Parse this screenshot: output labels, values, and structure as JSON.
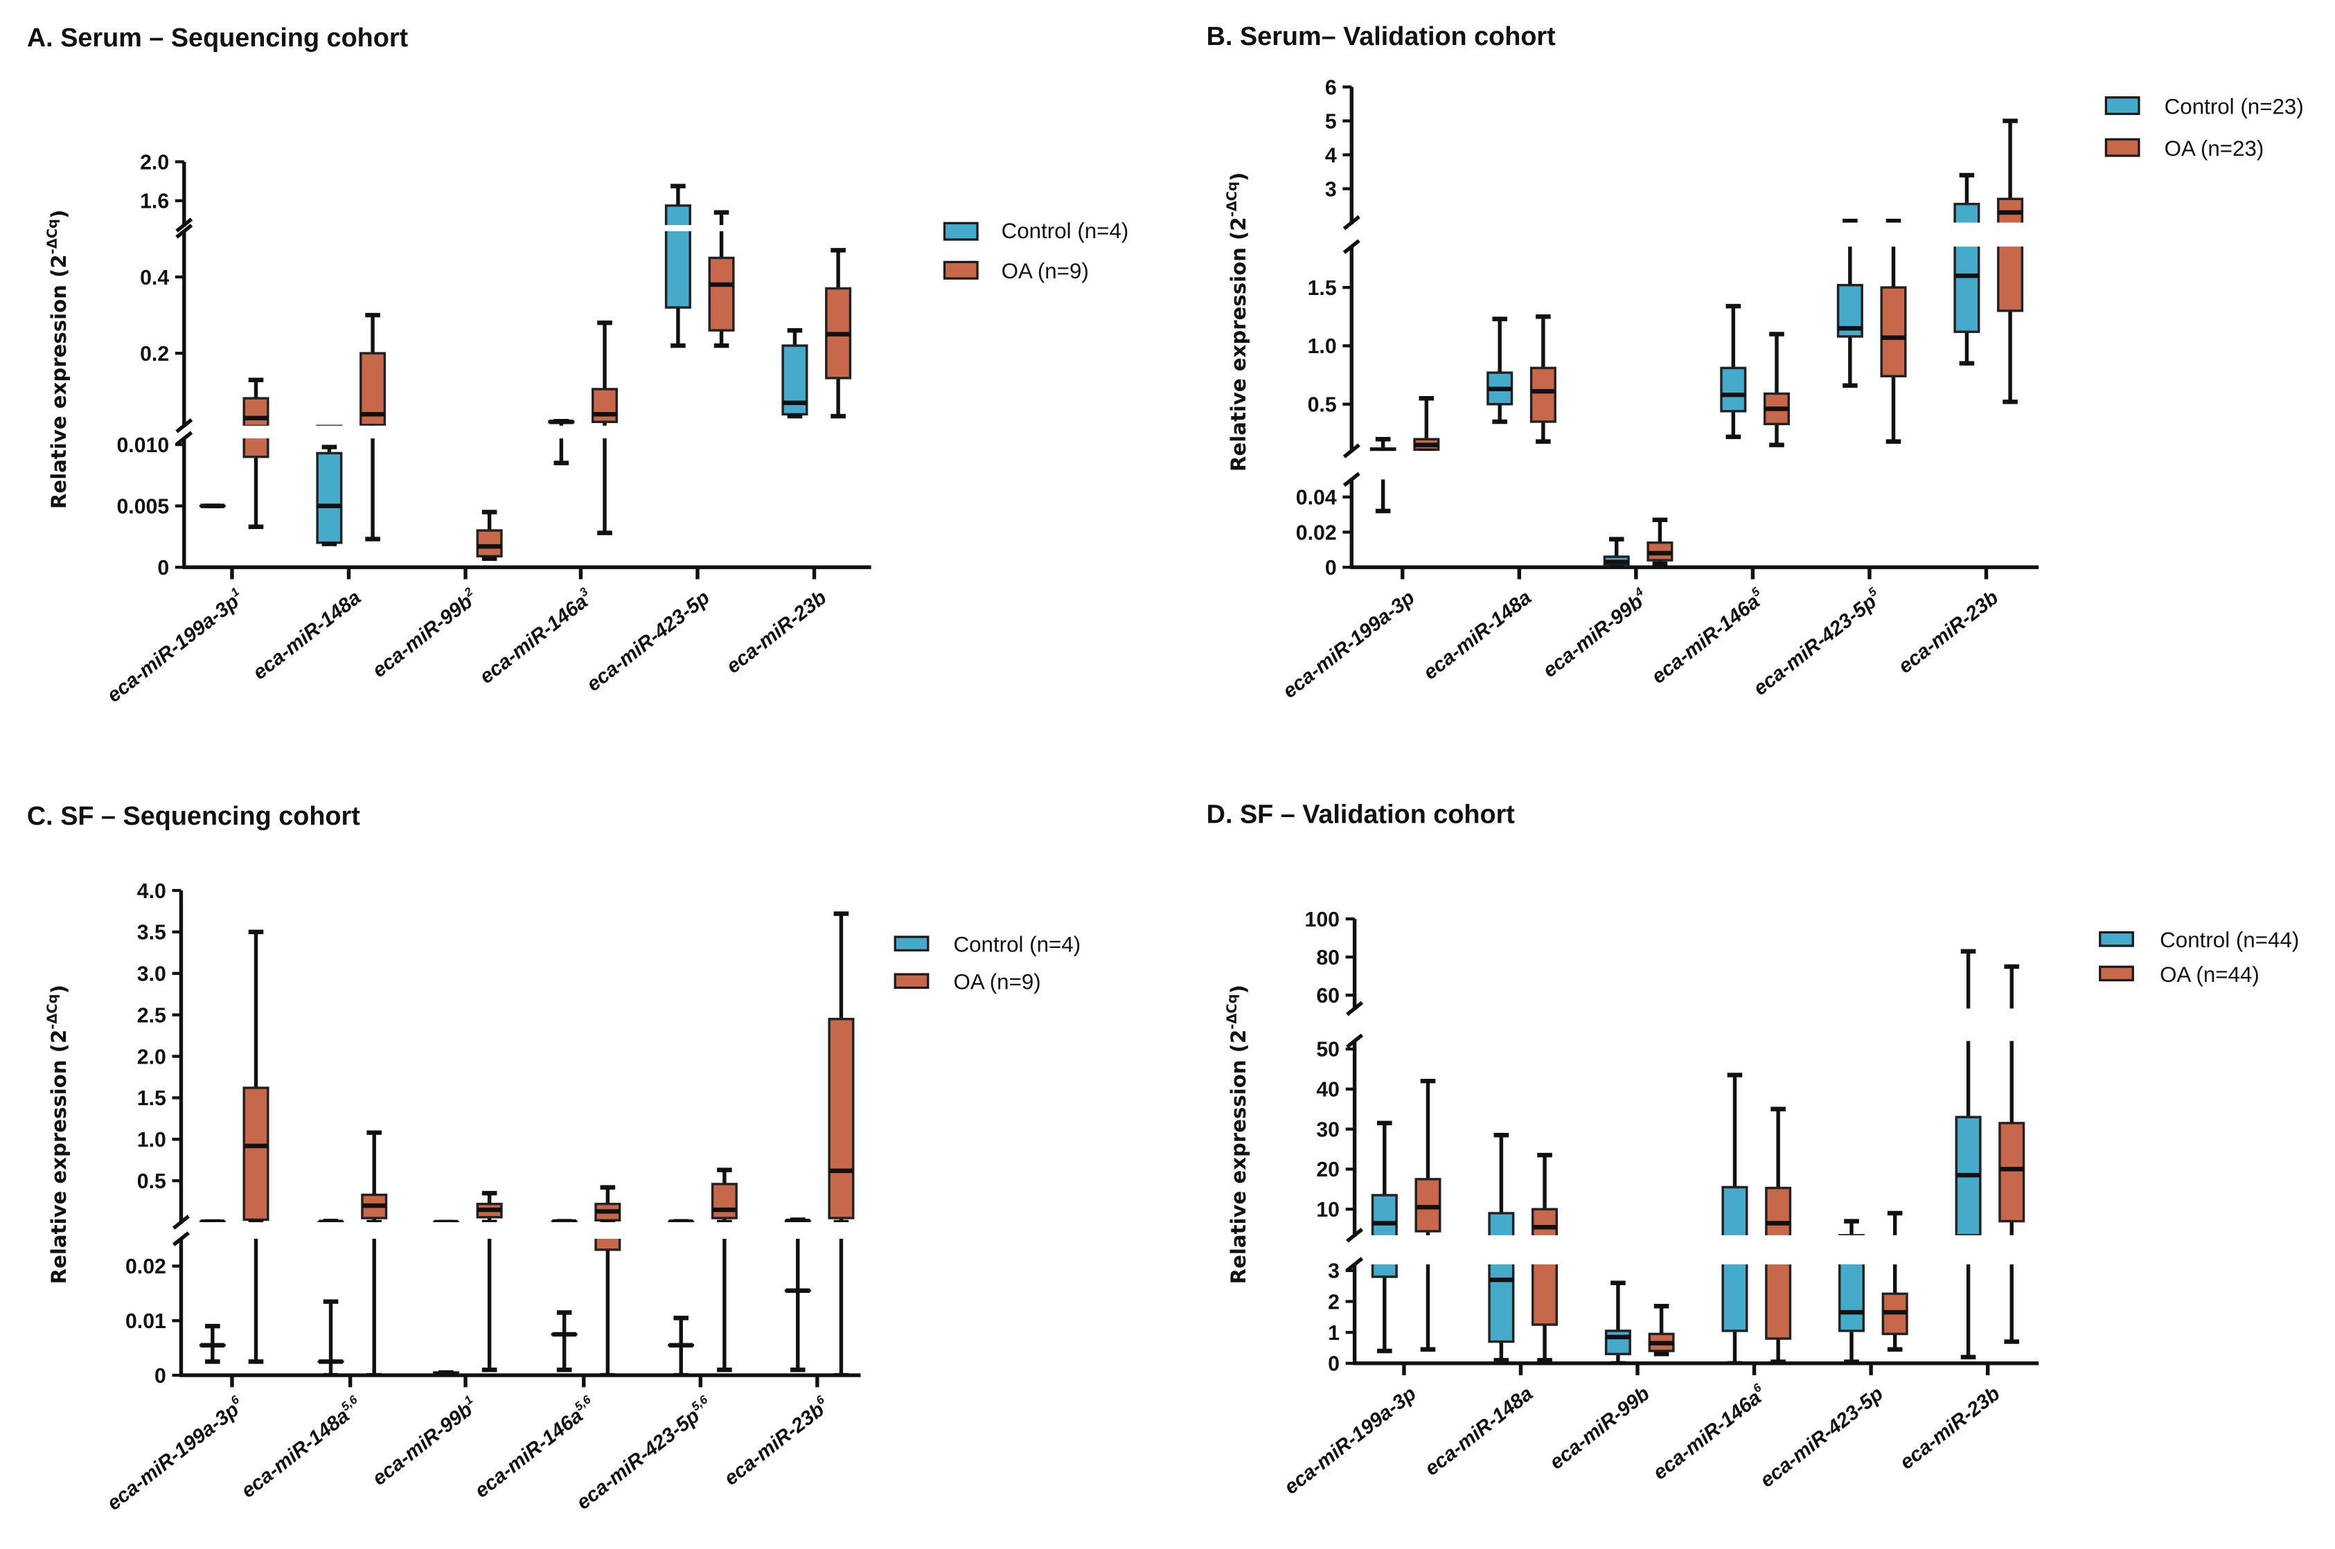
{
  "colors": {
    "control": "#46aacb",
    "oa": "#c8684a",
    "stroke": "#1a1a1a"
  },
  "chart_data": [
    {
      "type": "box",
      "title": "A. Serum – Sequencing cohort",
      "ylabel": {
        "base": "Relative expression (2",
        "sup": "-ΔCq",
        "close": ")"
      },
      "legend": {
        "placement": "right",
        "entries": [
          "Control (n=4)",
          "OA (n=9)"
        ]
      },
      "y_segments": [
        [
          0,
          0.0105
        ],
        [
          0.01,
          0.52
        ],
        [
          1.35,
          2.0
        ]
      ],
      "yticks": [
        {
          "v": 0,
          "label": "0"
        },
        {
          "v": 0.005,
          "label": "0.005"
        },
        {
          "v": 0.01,
          "label": "0.010"
        },
        {
          "v": 0.2,
          "label": "0.2"
        },
        {
          "v": 0.4,
          "label": "0.4"
        },
        {
          "v": 1.6,
          "label": "1.6"
        },
        {
          "v": 2.0,
          "label": "2.0"
        }
      ],
      "categories": [
        {
          "base": "eca-miR-199a-3p",
          "sup": "1"
        },
        {
          "base": "eca-miR-148a",
          "sup": ""
        },
        {
          "base": "eca-miR-99b",
          "sup": "2"
        },
        {
          "base": "eca-miR-146a",
          "sup": "3"
        },
        {
          "base": "eca-miR-423-5p",
          "sup": ""
        },
        {
          "base": "eca-miR-23b",
          "sup": ""
        }
      ],
      "series": [
        {
          "name": "Control (n=4)",
          "boxes": [
            {
              "min": 0.005,
              "q1": 0.005,
              "med": 0.005,
              "q3": 0.005,
              "max": 0.005
            },
            {
              "min": 0.0019,
              "q1": 0.002,
              "med": 0.005,
              "q3": 0.0093,
              "max": 0.0098
            },
            null,
            {
              "min": 0.0085,
              "q1": 0.019,
              "med": 0.02,
              "q3": 0.021,
              "max": 0.022
            },
            {
              "min": 0.22,
              "q1": 0.32,
              "med": null,
              "q3": 1.55,
              "max": 1.75
            },
            {
              "min": 0.035,
              "q1": 0.04,
              "med": 0.07,
              "q3": 0.22,
              "max": 0.26
            }
          ]
        },
        {
          "name": "OA (n=9)",
          "boxes": [
            {
              "min": 0.0033,
              "q1": 0.009,
              "med": 0.03,
              "q3": 0.082,
              "max": 0.13
            },
            {
              "min": 0.0023,
              "q1": 0.012,
              "med": 0.04,
              "q3": 0.2,
              "max": 0.3
            },
            {
              "min": 0.0007,
              "q1": 0.0009,
              "med": 0.0017,
              "q3": 0.003,
              "max": 0.0045
            },
            {
              "min": 0.0028,
              "q1": 0.02,
              "med": 0.04,
              "q3": 0.106,
              "max": 0.28
            },
            {
              "min": 0.22,
              "q1": 0.26,
              "med": 0.38,
              "q3": 0.45,
              "max": 1.48
            },
            {
              "min": 0.035,
              "q1": 0.135,
              "med": 0.25,
              "q3": 0.37,
              "max": 0.47
            }
          ]
        }
      ]
    },
    {
      "type": "box",
      "title": "B. Serum– Validation cohort",
      "ylabel": {
        "base": "Relative expression (2",
        "sup": "-ΔCq",
        "close": ")"
      },
      "legend": {
        "placement": "right",
        "entries": [
          "Control (n=23)",
          "OA (n=23)"
        ]
      },
      "y_segments": [
        [
          0,
          0.05
        ],
        [
          0.1,
          1.85
        ],
        [
          2.0,
          6.0
        ]
      ],
      "yticks": [
        {
          "v": 0,
          "label": "0"
        },
        {
          "v": 0.02,
          "label": "0.02"
        },
        {
          "v": 0.04,
          "label": "0.04"
        },
        {
          "v": 0.5,
          "label": "0.5"
        },
        {
          "v": 1.0,
          "label": "1.0"
        },
        {
          "v": 1.5,
          "label": "1.5"
        },
        {
          "v": 3,
          "label": "3"
        },
        {
          "v": 4,
          "label": "4"
        },
        {
          "v": 5,
          "label": "5"
        },
        {
          "v": 6,
          "label": "6"
        }
      ],
      "categories": [
        {
          "base": "eca-miR-199a-3p",
          "sup": ""
        },
        {
          "base": "eca-miR-148a",
          "sup": ""
        },
        {
          "base": "eca-miR-99b",
          "sup": "4"
        },
        {
          "base": "eca-miR-146a",
          "sup": "5"
        },
        {
          "base": "eca-miR-423-5p",
          "sup": "5"
        },
        {
          "base": "eca-miR-23b",
          "sup": ""
        }
      ],
      "series": [
        {
          "name": "Control (n=23)",
          "boxes": [
            {
              "min": 0.032,
              "q1": 0.1,
              "med": 0.1,
              "q3": 0.12,
              "max": 0.2
            },
            {
              "min": 0.35,
              "q1": 0.5,
              "med": 0.63,
              "q3": 0.77,
              "max": 1.23
            },
            {
              "min": 0,
              "q1": 0.001,
              "med": 0.003,
              "q3": 0.006,
              "max": 0.016
            },
            {
              "min": 0.22,
              "q1": 0.44,
              "med": 0.58,
              "q3": 0.81,
              "max": 1.34
            },
            {
              "min": 0.66,
              "q1": 1.08,
              "med": 1.15,
              "q3": 1.52,
              "max": 2.05
            },
            {
              "min": 0.85,
              "q1": 1.12,
              "med": 1.6,
              "q3": 2.55,
              "max": 3.4
            }
          ]
        },
        {
          "name": "OA (n=23)",
          "boxes": [
            {
              "min": 0.1,
              "q1": 0.11,
              "med": 0.15,
              "q3": 0.2,
              "max": 0.55
            },
            {
              "min": 0.18,
              "q1": 0.35,
              "med": 0.61,
              "q3": 0.81,
              "max": 1.25
            },
            {
              "min": 0.002,
              "q1": 0.004,
              "med": 0.008,
              "q3": 0.014,
              "max": 0.027
            },
            {
              "min": 0.15,
              "q1": 0.33,
              "med": 0.46,
              "q3": 0.59,
              "max": 1.1
            },
            {
              "min": 0.18,
              "q1": 0.74,
              "med": 1.07,
              "q3": 1.5,
              "max": 2.05
            },
            {
              "min": 0.52,
              "q1": 1.3,
              "med": 2.3,
              "q3": 2.7,
              "max": 5.0
            }
          ]
        }
      ]
    },
    {
      "type": "box",
      "title": "C. SF – Sequencing cohort",
      "ylabel": {
        "base": "Relative expression (2",
        "sup": "-ΔCq",
        "close": ")"
      },
      "legend": {
        "placement": "right",
        "entries": [
          "Control (n=4)",
          "OA (n=9)"
        ]
      },
      "y_segments": [
        [
          0,
          0.025
        ],
        [
          0,
          4.0
        ]
      ],
      "yticks": [
        {
          "v": 0,
          "label": "0",
          "seg": 0
        },
        {
          "v": 0.01,
          "label": "0.01",
          "seg": 0
        },
        {
          "v": 0.02,
          "label": "0.02",
          "seg": 0
        },
        {
          "v": 0.5,
          "label": "0.5",
          "seg": 1
        },
        {
          "v": 1.0,
          "label": "1.0",
          "seg": 1
        },
        {
          "v": 1.5,
          "label": "1.5",
          "seg": 1
        },
        {
          "v": 2.0,
          "label": "2.0",
          "seg": 1
        },
        {
          "v": 2.5,
          "label": "2.5",
          "seg": 1
        },
        {
          "v": 3.0,
          "label": "3.0",
          "seg": 1
        },
        {
          "v": 3.5,
          "label": "3.5",
          "seg": 1
        },
        {
          "v": 4.0,
          "label": "4.0",
          "seg": 1
        }
      ],
      "categories": [
        {
          "base": "eca-miR-199a-3p",
          "sup": "6"
        },
        {
          "base": "eca-miR-148a",
          "sup": "5,6"
        },
        {
          "base": "eca-miR-99b",
          "sup": "1"
        },
        {
          "base": "eca-miR-146a",
          "sup": "5,6"
        },
        {
          "base": "eca-miR-423-5p",
          "sup": "5,6"
        },
        {
          "base": "eca-miR-23b",
          "sup": "6"
        }
      ],
      "series": [
        {
          "name": "Control (n=4)",
          "boxes": [
            {
              "min": 0.0025,
              "q1": 0.0055,
              "med": 0.0055,
              "q3": 0.0055,
              "max": 0.009
            },
            {
              "min": 0,
              "q1": 0.0025,
              "med": 0.0025,
              "q3": 0.0025,
              "max": 0.0135
            },
            {
              "min": 0,
              "q1": 0,
              "med": 0.0003,
              "q3": 0.0005,
              "max": 0.0005
            },
            {
              "min": 0.001,
              "q1": 0.0075,
              "med": 0.0075,
              "q3": 0.0075,
              "max": 0.0115
            },
            {
              "min": 0,
              "q1": 0.0055,
              "med": 0.0055,
              "q3": 0.0055,
              "max": 0.0105
            },
            {
              "min": 0.001,
              "q1": 0.0155,
              "med": 0.0155,
              "q3": 0.0155,
              "max": 0.03
            }
          ]
        },
        {
          "name": "OA (n=9)",
          "boxes": [
            {
              "min": 0.0025,
              "q1": 0.03,
              "med": 0.92,
              "q3": 1.62,
              "max": 3.5
            },
            {
              "min": 0,
              "q1": 0.05,
              "med": 0.2,
              "q3": 0.33,
              "max": 1.08
            },
            {
              "min": 0.001,
              "q1": 0.06,
              "med": 0.15,
              "q3": 0.22,
              "max": 0.35
            },
            {
              "min": 0,
              "q1": 0.023,
              "med": 0.13,
              "q3": 0.22,
              "max": 0.42
            },
            {
              "min": 0.001,
              "q1": 0.05,
              "med": 0.15,
              "q3": 0.46,
              "max": 0.63
            },
            {
              "min": 0,
              "q1": 0.05,
              "med": 0.62,
              "q3": 2.45,
              "max": 3.72
            }
          ]
        }
      ]
    },
    {
      "type": "box",
      "title": "D. SF – Validation cohort",
      "ylabel": {
        "base": "Relative expression (2",
        "sup": "-ΔCq",
        "close": ")"
      },
      "legend": {
        "placement": "right",
        "entries": [
          "Control (n=44)",
          "OA (n=44)"
        ]
      },
      "y_segments": [
        [
          0,
          3.2
        ],
        [
          3.5,
          52
        ],
        [
          53,
          100
        ]
      ],
      "yticks": [
        {
          "v": 0,
          "label": "0"
        },
        {
          "v": 1,
          "label": "1"
        },
        {
          "v": 2,
          "label": "2"
        },
        {
          "v": 3,
          "label": "3"
        },
        {
          "v": 10,
          "label": "10"
        },
        {
          "v": 20,
          "label": "20"
        },
        {
          "v": 30,
          "label": "30"
        },
        {
          "v": 40,
          "label": "40"
        },
        {
          "v": 50,
          "label": "50"
        },
        {
          "v": 60,
          "label": "60"
        },
        {
          "v": 80,
          "label": "80"
        },
        {
          "v": 100,
          "label": "100"
        }
      ],
      "categories": [
        {
          "base": "eca-miR-199a-3p",
          "sup": ""
        },
        {
          "base": "eca-miR-148a",
          "sup": ""
        },
        {
          "base": "eca-miR-99b",
          "sup": ""
        },
        {
          "base": "eca-miR-146a",
          "sup": "6"
        },
        {
          "base": "eca-miR-423-5p",
          "sup": ""
        },
        {
          "base": "eca-miR-23b",
          "sup": ""
        }
      ],
      "series": [
        {
          "name": "Control (n=44)",
          "boxes": [
            {
              "min": 0.4,
              "q1": 2.8,
              "med": 6.5,
              "q3": 13.5,
              "max": 31.5
            },
            {
              "min": 0.1,
              "q1": 0.7,
              "med": 2.7,
              "q3": 9,
              "max": 28.5
            },
            {
              "min": 0,
              "q1": 0.3,
              "med": 0.85,
              "q3": 1.05,
              "max": 2.6
            },
            {
              "min": 0,
              "q1": 1.05,
              "med": null,
              "q3": 15.5,
              "max": 43.5
            },
            {
              "min": 0.05,
              "q1": 1.05,
              "med": 1.65,
              "q3": 3.5,
              "max": 7
            },
            {
              "min": 0.2,
              "q1": 3.5,
              "med": 18.5,
              "q3": 33,
              "max": 83
            }
          ]
        },
        {
          "name": "OA (n=44)",
          "boxes": [
            {
              "min": 0.45,
              "q1": 4.5,
              "med": 10.5,
              "q3": 17.5,
              "max": 42
            },
            {
              "min": 0.1,
              "q1": 1.25,
              "med": 5.5,
              "q3": 10,
              "max": 23.5
            },
            {
              "min": 0.3,
              "q1": 0.4,
              "med": 0.65,
              "q3": 0.95,
              "max": 1.85
            },
            {
              "min": 0.05,
              "q1": 0.8,
              "med": 6.5,
              "q3": 15.3,
              "max": 35
            },
            {
              "min": 0.45,
              "q1": 0.95,
              "med": 1.65,
              "q3": 2.25,
              "max": 9
            },
            {
              "min": 0.7,
              "q1": 7,
              "med": 20,
              "q3": 31.5,
              "max": 75
            }
          ]
        }
      ]
    }
  ]
}
